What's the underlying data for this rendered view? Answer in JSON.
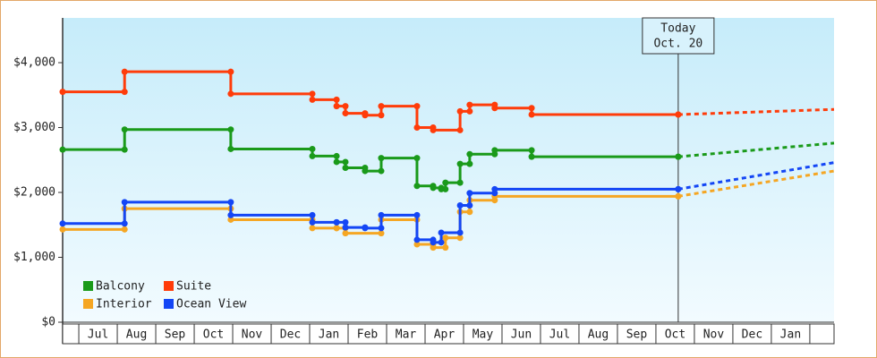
{
  "chart_data": {
    "type": "step-line",
    "xlim": [
      -0.42,
      19.63
    ],
    "ylim": [
      0,
      4690
    ],
    "yticks": [
      {
        "value": 0,
        "label": "$0"
      },
      {
        "value": 1000,
        "label": "$1,000"
      },
      {
        "value": 2000,
        "label": "$2,000"
      },
      {
        "value": 3000,
        "label": "$3,000"
      },
      {
        "value": 4000,
        "label": "$4,000"
      }
    ],
    "xticks": [
      {
        "value": 0.5,
        "label": "Jul"
      },
      {
        "value": 1.5,
        "label": "Aug"
      },
      {
        "value": 2.5,
        "label": "Sep"
      },
      {
        "value": 3.5,
        "label": "Oct"
      },
      {
        "value": 4.5,
        "label": "Nov"
      },
      {
        "value": 5.5,
        "label": "Dec"
      },
      {
        "value": 6.5,
        "label": "Jan"
      },
      {
        "value": 7.5,
        "label": "Feb"
      },
      {
        "value": 8.5,
        "label": "Mar"
      },
      {
        "value": 9.5,
        "label": "Apr"
      },
      {
        "value": 10.5,
        "label": "May"
      },
      {
        "value": 11.5,
        "label": "Jun"
      },
      {
        "value": 12.5,
        "label": "Jul"
      },
      {
        "value": 13.5,
        "label": "Aug"
      },
      {
        "value": 14.5,
        "label": "Sep"
      },
      {
        "value": 15.5,
        "label": "Oct"
      },
      {
        "value": 16.5,
        "label": "Nov"
      },
      {
        "value": 17.5,
        "label": "Dec"
      },
      {
        "value": 18.5,
        "label": "Jan"
      }
    ],
    "annotation": {
      "x": 15.58,
      "lines": [
        "Today",
        "Oct. 20"
      ]
    },
    "series": [
      {
        "name": "Balcony",
        "color": "#1a9a1a",
        "x": [
          -0.42,
          1.19,
          3.95,
          6.07,
          6.7,
          6.93,
          7.44,
          7.86,
          8.79,
          9.21,
          9.42,
          9.53,
          9.91,
          10.16,
          10.81,
          11.77,
          15.58,
          19.63
        ],
        "values": [
          2660,
          2970,
          2670,
          2560,
          2470,
          2380,
          2330,
          2530,
          2100,
          2070,
          2050,
          2150,
          2440,
          2590,
          2650,
          2550,
          2550,
          2760
        ]
      },
      {
        "name": "Suite",
        "color": "#ff3c0a",
        "x": [
          -0.42,
          1.19,
          3.95,
          6.07,
          6.7,
          6.93,
          7.44,
          7.86,
          8.79,
          9.21,
          9.91,
          10.16,
          10.81,
          11.77,
          15.58,
          19.63
        ],
        "values": [
          3550,
          3860,
          3520,
          3430,
          3330,
          3220,
          3190,
          3330,
          3000,
          2960,
          3250,
          3350,
          3300,
          3200,
          3200,
          3280
        ]
      },
      {
        "name": "Interior",
        "color": "#f5a623",
        "x": [
          -0.42,
          1.19,
          3.95,
          6.07,
          6.7,
          6.93,
          7.86,
          8.79,
          9.21,
          9.53,
          9.91,
          10.16,
          10.81,
          15.58,
          19.63
        ],
        "values": [
          1430,
          1750,
          1580,
          1450,
          1450,
          1370,
          1580,
          1200,
          1150,
          1300,
          1700,
          1880,
          1940,
          1940,
          2330
        ]
      },
      {
        "name": "Ocean View",
        "color": "#1446f5",
        "x": [
          -0.42,
          1.19,
          3.95,
          6.07,
          6.7,
          6.93,
          7.44,
          7.86,
          8.79,
          9.21,
          9.42,
          9.91,
          10.16,
          10.81,
          15.58,
          19.63
        ],
        "values": [
          1520,
          1850,
          1650,
          1540,
          1540,
          1460,
          1450,
          1650,
          1270,
          1230,
          1380,
          1800,
          1990,
          2050,
          2050,
          2460
        ]
      }
    ]
  }
}
